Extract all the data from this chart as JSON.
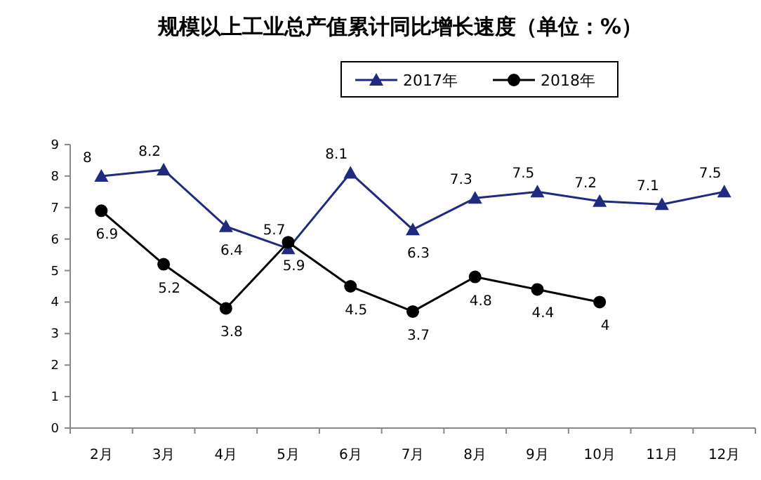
{
  "chart_data": {
    "type": "line",
    "title": "规模以上工业总产值累计同比增长速度（单位：%）",
    "categories": [
      "2月",
      "3月",
      "4月",
      "5月",
      "6月",
      "7月",
      "8月",
      "9月",
      "10月",
      "11月",
      "12月"
    ],
    "series": [
      {
        "name": "2017年",
        "color": "#1f2a80",
        "marker": "triangle",
        "values": [
          8,
          8.2,
          6.4,
          5.7,
          8.1,
          6.3,
          7.3,
          7.5,
          7.2,
          7.1,
          7.5
        ]
      },
      {
        "name": "2018年",
        "color": "#000000",
        "marker": "circle",
        "values": [
          6.9,
          5.2,
          3.8,
          5.9,
          4.5,
          3.7,
          4.8,
          4.4,
          4,
          null,
          null
        ]
      }
    ],
    "ylim": [
      0,
      9
    ],
    "yticks": [
      0,
      1,
      2,
      3,
      4,
      5,
      6,
      7,
      8,
      9
    ],
    "grid": false,
    "legend": "top",
    "data_labels": true
  }
}
